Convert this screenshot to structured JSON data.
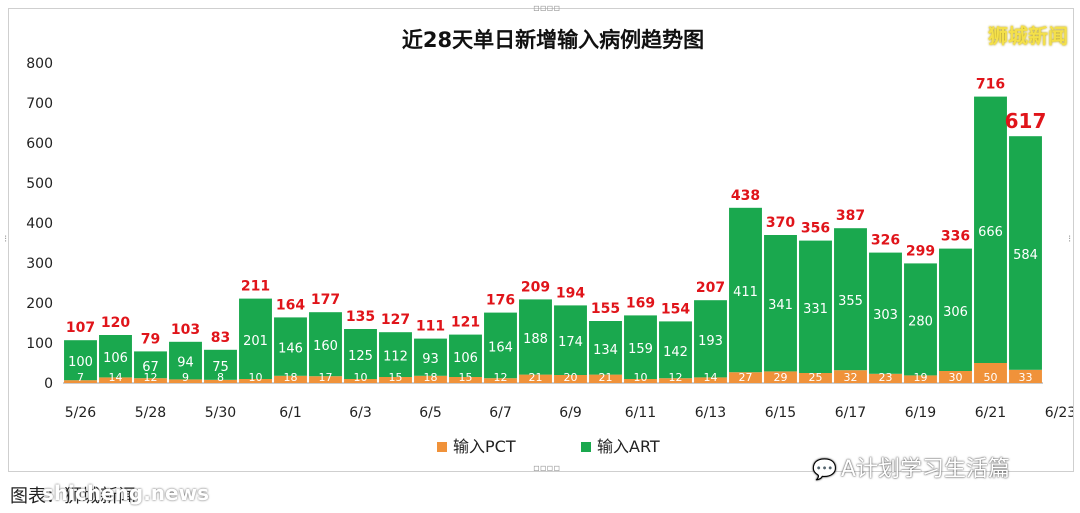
{
  "chart_data": {
    "type": "bar",
    "stacked": true,
    "title": "近28天单日新增输入病例趋势图",
    "categories": [
      "5/26",
      "5/27",
      "5/28",
      "5/29",
      "5/30",
      "5/31",
      "6/1",
      "6/2",
      "6/3",
      "6/4",
      "6/5",
      "6/6",
      "6/7",
      "6/8",
      "6/9",
      "6/10",
      "6/11",
      "6/12",
      "6/13",
      "6/14",
      "6/15",
      "6/16",
      "6/17",
      "6/18",
      "6/19",
      "6/20",
      "6/21",
      "6/22"
    ],
    "x_tick_labels": [
      "5/26",
      "5/28",
      "5/30",
      "6/1",
      "6/3",
      "6/5",
      "6/7",
      "6/9",
      "6/11",
      "6/13",
      "6/15",
      "6/17",
      "6/19",
      "6/21",
      "6/23"
    ],
    "series": [
      {
        "name": "输入PCT",
        "color": "#f0923a",
        "values": [
          7,
          14,
          12,
          9,
          8,
          10,
          18,
          17,
          10,
          15,
          18,
          15,
          12,
          21,
          20,
          21,
          10,
          12,
          14,
          27,
          29,
          25,
          32,
          23,
          19,
          30,
          50,
          33
        ]
      },
      {
        "name": "输入ART",
        "color": "#1aa84e",
        "values": [
          100,
          106,
          67,
          94,
          75,
          201,
          146,
          160,
          125,
          112,
          93,
          106,
          164,
          188,
          174,
          134,
          159,
          142,
          193,
          411,
          341,
          331,
          355,
          303,
          280,
          306,
          666,
          584
        ]
      }
    ],
    "totals": [
      107,
      120,
      79,
      103,
      83,
      211,
      164,
      177,
      135,
      127,
      111,
      121,
      176,
      209,
      194,
      155,
      169,
      154,
      207,
      438,
      370,
      356,
      387,
      326,
      299,
      336,
      716,
      617
    ],
    "yticks": [
      0,
      100,
      200,
      300,
      400,
      500,
      600,
      700,
      800
    ],
    "ylim": [
      0,
      800
    ],
    "legend_position": "bottom",
    "grid": false
  },
  "brand": "狮城新闻",
  "wechat": {
    "icon": "wechat-icon",
    "label": "A计划学习生活篇"
  },
  "source": "图表：狮城新闻",
  "source_watermark": "shicheng.news",
  "colors": {
    "total_label": "#e0141a",
    "axis": "#333333"
  }
}
